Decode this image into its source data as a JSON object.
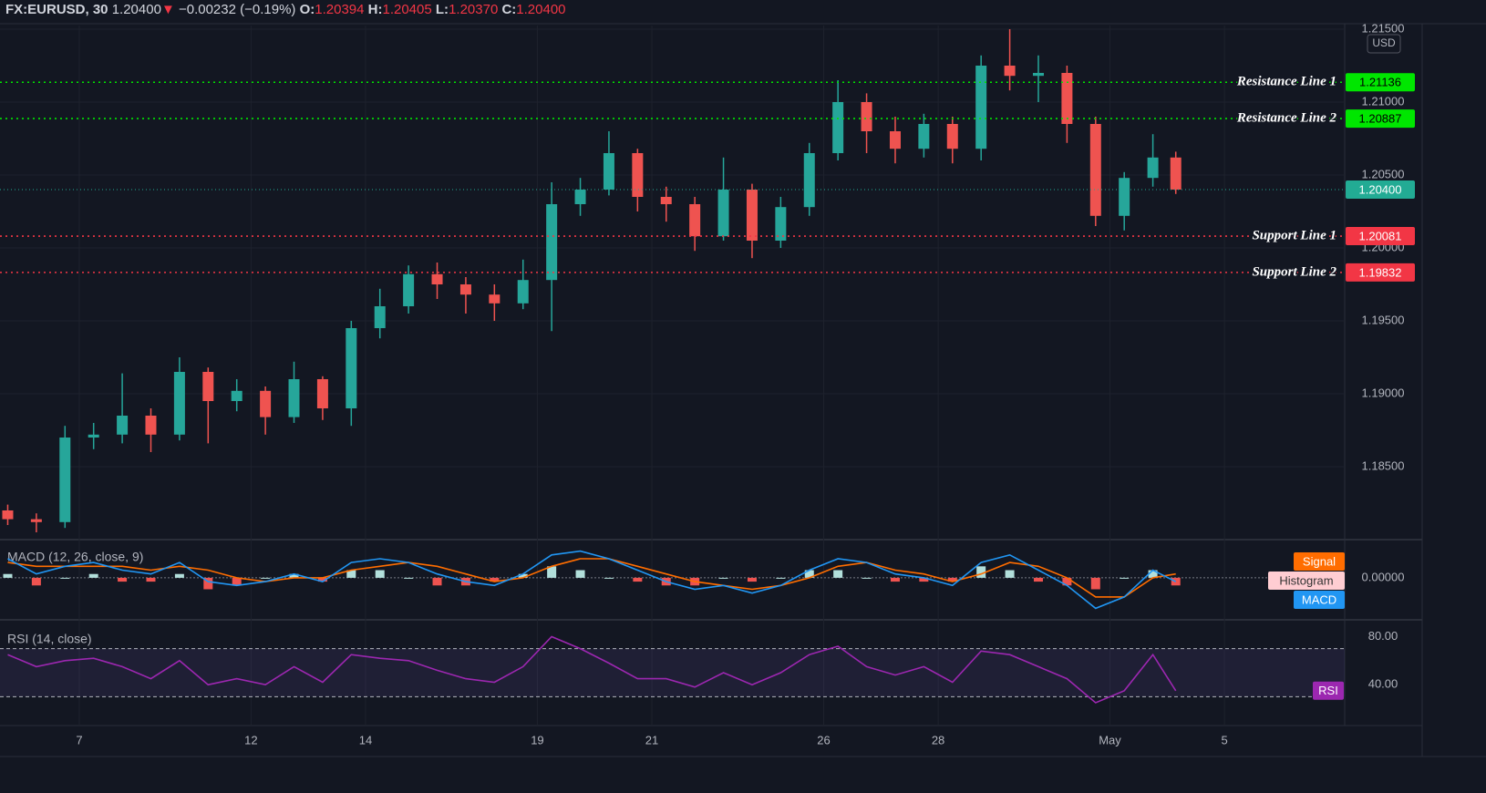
{
  "header": {
    "symbol": "FX:EURUSD, 30",
    "last": "1.20400",
    "arrow": "▼",
    "change": "−0.00232 (−0.19%)",
    "ohlc": [
      {
        "key": "O:",
        "value": "1.20394"
      },
      {
        "key": "H:",
        "value": "1.20405"
      },
      {
        "key": "L:",
        "value": "1.20370"
      },
      {
        "key": "C:",
        "value": "1.20400"
      }
    ]
  },
  "chart_data": [
    {
      "type": "candlestick",
      "currency": "USD",
      "x": [
        -0.25,
        0.25,
        0.75,
        1.25,
        1.75,
        2.25,
        2.75,
        3.25,
        3.75,
        4.25,
        4.75,
        5.25,
        5.75,
        6.25,
        6.75,
        7.25,
        7.75,
        8.25,
        8.75,
        9.25,
        9.75,
        10.25,
        10.75,
        11.25,
        11.75,
        12.25,
        12.75,
        13.25,
        13.75,
        14.25,
        14.75,
        15.25,
        15.75,
        16.25,
        16.75,
        17.25,
        17.75,
        18.25,
        18.75,
        19.25,
        19.75,
        20.15
      ],
      "open": [
        1.182,
        1.1814,
        1.1812,
        1.187,
        1.1872,
        1.1885,
        1.1872,
        1.1915,
        1.1895,
        1.1902,
        1.1884,
        1.191,
        1.189,
        1.1945,
        1.196,
        1.1982,
        1.1975,
        1.1968,
        1.1962,
        1.1978,
        1.203,
        1.204,
        1.2065,
        1.2035,
        1.203,
        1.2008,
        1.204,
        1.2005,
        1.2028,
        1.2065,
        1.21,
        1.208,
        1.2068,
        1.2085,
        1.2068,
        1.2125,
        1.2118,
        1.212,
        1.2085,
        1.2022,
        1.2048,
        1.2062
      ],
      "high": [
        1.1824,
        1.1818,
        1.1878,
        1.188,
        1.1914,
        1.189,
        1.1925,
        1.1918,
        1.191,
        1.1905,
        1.1922,
        1.1912,
        1.195,
        1.1972,
        1.1988,
        1.199,
        1.198,
        1.1975,
        1.1992,
        1.2045,
        1.2048,
        1.208,
        1.2068,
        1.2042,
        1.2035,
        1.2062,
        1.2044,
        1.2035,
        1.2072,
        1.2115,
        1.2106,
        1.209,
        1.2092,
        1.209,
        1.2132,
        1.215,
        1.2132,
        1.2125,
        1.209,
        1.2052,
        1.2078,
        1.2066
      ],
      "low": [
        1.181,
        1.1805,
        1.1808,
        1.1862,
        1.1866,
        1.186,
        1.1868,
        1.1866,
        1.1888,
        1.1872,
        1.188,
        1.1882,
        1.1878,
        1.1938,
        1.1955,
        1.1965,
        1.1955,
        1.195,
        1.1958,
        1.1943,
        1.2022,
        1.2036,
        1.2025,
        1.2018,
        1.1998,
        1.2005,
        1.1993,
        1.2,
        1.2022,
        1.206,
        1.2065,
        1.2058,
        1.2062,
        1.2058,
        1.206,
        1.2108,
        1.21,
        1.2072,
        1.2015,
        1.2012,
        1.2042,
        1.2037
      ],
      "close": [
        1.1814,
        1.1812,
        1.187,
        1.1872,
        1.1885,
        1.1872,
        1.1915,
        1.1895,
        1.1902,
        1.1884,
        1.191,
        1.189,
        1.1945,
        1.196,
        1.1982,
        1.1975,
        1.1968,
        1.1962,
        1.1978,
        1.203,
        1.204,
        1.2065,
        1.2035,
        1.203,
        1.2008,
        1.204,
        1.2005,
        1.2028,
        1.2065,
        1.21,
        1.208,
        1.2068,
        1.2085,
        1.2068,
        1.2125,
        1.2118,
        1.212,
        1.2085,
        1.2022,
        1.2048,
        1.2062,
        1.204
      ],
      "up_color": "#26a69a",
      "down_color": "#ef5350",
      "xlim": [
        -0.385,
        23.1
      ],
      "ylim": [
        1.18,
        1.21525
      ],
      "xticks": [
        {
          "value": 1,
          "label": "7"
        },
        {
          "value": 4,
          "label": "12"
        },
        {
          "value": 6,
          "label": "14"
        },
        {
          "value": 9,
          "label": "19"
        },
        {
          "value": 11,
          "label": "21"
        },
        {
          "value": 14,
          "label": "26"
        },
        {
          "value": 16,
          "label": "28"
        },
        {
          "value": 19,
          "label": "May"
        },
        {
          "value": 21,
          "label": "5"
        }
      ],
      "yticks": [
        {
          "value": 1.185,
          "label": "1.18500"
        },
        {
          "value": 1.19,
          "label": "1.19000"
        },
        {
          "value": 1.195,
          "label": "1.19500"
        },
        {
          "value": 1.2,
          "label": "1.20000"
        },
        {
          "value": 1.205,
          "label": "1.20500"
        },
        {
          "value": 1.21,
          "label": "1.21000"
        },
        {
          "value": 1.215,
          "label": "1.21500"
        }
      ],
      "grid": true,
      "hlines": [
        {
          "name": "Resistance Line 1",
          "value": 1.21136,
          "color": "#00e600"
        },
        {
          "name": "Resistance Line 2",
          "value": 1.20887,
          "color": "#00e600"
        },
        {
          "name": "Support Line 1",
          "value": 1.20081,
          "color": "#f23645"
        },
        {
          "name": "Support Line 2",
          "value": 1.19832,
          "color": "#f23645"
        }
      ],
      "last_price": {
        "value": 1.204,
        "label": "1.20400",
        "color": "#22ab94"
      }
    },
    {
      "type": "macd",
      "title": "MACD (12, 26, close, 9)",
      "x": [
        -0.25,
        0.25,
        0.75,
        1.25,
        1.75,
        2.25,
        2.75,
        3.25,
        3.75,
        4.25,
        4.75,
        5.25,
        5.75,
        6.25,
        6.75,
        7.25,
        7.75,
        8.25,
        8.75,
        9.25,
        9.75,
        10.25,
        10.75,
        11.25,
        11.75,
        12.25,
        12.75,
        13.25,
        13.75,
        14.25,
        14.75,
        15.25,
        15.75,
        16.25,
        16.75,
        17.25,
        17.75,
        18.25,
        18.75,
        19.25,
        19.75,
        20.15
      ],
      "xlim": [
        -0.385,
        23.1
      ],
      "ylim": [
        -0.0011,
        0.001
      ],
      "yticks": [
        {
          "value": 0,
          "label": "0.00000"
        }
      ],
      "series": [
        {
          "name": "Signal",
          "color": "#ff6d00",
          "style": "line",
          "values": [
            0.0004,
            0.0003,
            0.0003,
            0.0003,
            0.0003,
            0.0002,
            0.0003,
            0.0002,
            0.0,
            -0.0001,
            0.0,
            0.0,
            0.0002,
            0.0003,
            0.0004,
            0.0003,
            0.0001,
            -0.0001,
            0.0,
            0.0003,
            0.0005,
            0.0005,
            0.0003,
            0.0001,
            -0.0001,
            -0.0002,
            -0.0003,
            -0.0002,
            0.0,
            0.0003,
            0.0004,
            0.0002,
            0.0001,
            -0.0001,
            0.0001,
            0.0004,
            0.0003,
            0.0,
            -0.0005,
            -0.0005,
            0.0,
            0.0001
          ]
        },
        {
          "name": "Histogram",
          "color": "#ffcdd2",
          "style": "columns",
          "up_color": "#b2dfdb",
          "down_color": "#ef5350",
          "values": [
            0.0001,
            -0.0002,
            0.0,
            0.0001,
            -0.0001,
            -0.0001,
            0.0001,
            -0.0003,
            -0.0002,
            0.0,
            0.0001,
            -0.0001,
            0.0002,
            0.0002,
            0.0,
            -0.0002,
            -0.0002,
            -0.0001,
            0.0001,
            0.0003,
            0.0002,
            0.0,
            -0.0001,
            -0.0002,
            -0.0002,
            0.0,
            -0.0001,
            0.0,
            0.0002,
            0.0002,
            0.0,
            -0.0001,
            -0.0001,
            -0.0001,
            0.0003,
            0.0002,
            -0.0001,
            -0.0002,
            -0.0003,
            0.0,
            0.0002,
            -0.0002
          ]
        },
        {
          "name": "MACD",
          "color": "#2196f3",
          "style": "line",
          "values": [
            0.0005,
            0.0001,
            0.0003,
            0.0004,
            0.0002,
            0.0001,
            0.0004,
            -0.0001,
            -0.0002,
            -0.0001,
            0.0001,
            -0.0001,
            0.0004,
            0.0005,
            0.0004,
            0.0001,
            -0.0001,
            -0.0002,
            0.0001,
            0.0006,
            0.0007,
            0.0005,
            0.0002,
            -0.0001,
            -0.0003,
            -0.0002,
            -0.0004,
            -0.0002,
            0.0002,
            0.0005,
            0.0004,
            0.0001,
            0.0,
            -0.0002,
            0.0004,
            0.0006,
            0.0002,
            -0.0002,
            -0.0008,
            -0.0005,
            0.0002,
            -0.0001
          ]
        }
      ]
    },
    {
      "type": "rsi",
      "title": "RSI (14, close)",
      "x": [
        -0.25,
        0.25,
        0.75,
        1.25,
        1.75,
        2.25,
        2.75,
        3.25,
        3.75,
        4.25,
        4.75,
        5.25,
        5.75,
        6.25,
        6.75,
        7.25,
        7.75,
        8.25,
        8.75,
        9.25,
        9.75,
        10.25,
        10.75,
        11.25,
        11.75,
        12.25,
        12.75,
        13.25,
        13.75,
        14.25,
        14.75,
        15.25,
        15.75,
        16.25,
        16.75,
        17.25,
        17.75,
        18.25,
        18.75,
        19.25,
        19.75,
        20.15
      ],
      "xlim": [
        -0.385,
        23.1
      ],
      "ylim": [
        6,
        94
      ],
      "yticks": [
        {
          "value": 80,
          "label": "80.00"
        },
        {
          "value": 40,
          "label": "40.00"
        }
      ],
      "bands": [
        30,
        70
      ],
      "band_color": "#7e57c2",
      "series": [
        {
          "name": "RSI",
          "color": "#9c27b0",
          "values": [
            65,
            55,
            60,
            62,
            55,
            45,
            60,
            40,
            45,
            40,
            55,
            42,
            65,
            62,
            60,
            52,
            45,
            42,
            55,
            80,
            70,
            58,
            45,
            45,
            38,
            50,
            40,
            50,
            65,
            72,
            55,
            48,
            55,
            42,
            68,
            65,
            55,
            45,
            25,
            35,
            65,
            35
          ]
        }
      ]
    }
  ]
}
